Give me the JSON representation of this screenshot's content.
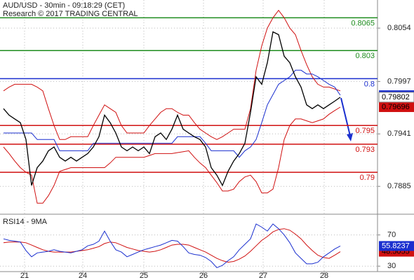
{
  "chart_data": [
    {
      "type": "line",
      "title": "AUD/USD - 30min - 09:18:29 (CET)",
      "subtitle": "Research © 2017 TRADING CENTRAL",
      "x": [
        0,
        1,
        2,
        3,
        4,
        5,
        6,
        7,
        8,
        9,
        10,
        11,
        12,
        13,
        14,
        15,
        16,
        17,
        18,
        19,
        20,
        21,
        22,
        23,
        24,
        25,
        26,
        27,
        28,
        29,
        30,
        31,
        32,
        33,
        34,
        35,
        36,
        37,
        38,
        39,
        40,
        41,
        42,
        43,
        44,
        45,
        46,
        47,
        48,
        49,
        50,
        51,
        52,
        53,
        54,
        55,
        56,
        57,
        58,
        59,
        60
      ],
      "series": [
        {
          "color": "#d01010",
          "values": [
            0.7987,
            0.7991,
            0.7994,
            0.7994,
            0.7994,
            0.7994,
            0.7991,
            0.7987,
            0.7968,
            0.795,
            0.7935,
            0.7935,
            0.7938,
            0.7938,
            0.7938,
            0.7938,
            0.795,
            0.7961,
            0.7972,
            0.7968,
            0.7964,
            0.795,
            0.7942,
            0.7942,
            0.7942,
            0.7942,
            0.795,
            0.7957,
            0.7964,
            0.7968,
            0.7968,
            0.7964,
            0.7961,
            0.7961,
            0.7953,
            0.7946,
            0.7942,
            0.7938,
            0.7935,
            0.7938,
            0.7942,
            0.7946,
            0.7946,
            0.7946,
            0.7968,
            0.8009,
            0.8035,
            0.8054,
            0.8065,
            0.8073,
            0.8065,
            0.8054,
            0.8047,
            0.803,
            0.8015,
            0.8002,
            0.7994,
            0.7991,
            0.7991,
            0.7989,
            0.7987
          ]
        },
        {
          "color": "#d01010",
          "tag": true,
          "values": [
            0.7927,
            0.792,
            0.7912,
            0.7905,
            0.79,
            0.7897,
            0.7867,
            0.7867,
            0.7875,
            0.7886,
            0.7901,
            0.7903,
            0.7905,
            0.7905,
            0.7905,
            0.7905,
            0.7905,
            0.7905,
            0.7905,
            0.791,
            0.7916,
            0.7916,
            0.7916,
            0.7916,
            0.7916,
            0.7916,
            0.7918,
            0.792,
            0.792,
            0.792,
            0.792,
            0.7921,
            0.7922,
            0.7923,
            0.7916,
            0.791,
            0.7905,
            0.7897,
            0.7889,
            0.788,
            0.788,
            0.7882,
            0.789,
            0.7895,
            0.7897,
            0.789,
            0.7878,
            0.7878,
            0.7882,
            0.7905,
            0.7935,
            0.795,
            0.7957,
            0.7957,
            0.7955,
            0.7953,
            0.7955,
            0.7957,
            0.7962,
            0.7966,
            0.79696
          ]
        },
        {
          "color": "#1a2fcf",
          "tag": true,
          "values": [
            0.7942,
            0.7942,
            0.7942,
            0.7942,
            0.7942,
            0.7942,
            0.7935,
            0.7935,
            0.7935,
            0.7935,
            0.7923,
            0.7923,
            0.7923,
            0.7923,
            0.7923,
            0.7923,
            0.7931,
            0.7931,
            0.7931,
            0.7931,
            0.7931,
            0.7931,
            0.7931,
            0.7931,
            0.7931,
            0.7931,
            0.7931,
            0.7931,
            0.7931,
            0.7931,
            0.7931,
            0.7938,
            0.7938,
            0.7938,
            0.7938,
            0.7938,
            0.7931,
            0.7923,
            0.7923,
            0.7923,
            0.7923,
            0.7923,
            0.7916,
            0.7923,
            0.7927,
            0.7935,
            0.7953,
            0.7972,
            0.7983,
            0.7994,
            0.7998,
            0.8002,
            0.8009,
            0.8009,
            0.8005,
            0.8005,
            0.8002,
            0.7998,
            0.7994,
            0.7991,
            0.79823
          ]
        },
        {
          "color": "#000000",
          "tag": true,
          "values": [
            0.7968,
            0.7961,
            0.7957,
            0.7953,
            0.7935,
            0.7886,
            0.7905,
            0.7912,
            0.7923,
            0.7927,
            0.7916,
            0.7912,
            0.7916,
            0.7912,
            0.7916,
            0.792,
            0.7927,
            0.7938,
            0.7961,
            0.7953,
            0.7942,
            0.7927,
            0.7923,
            0.7927,
            0.7923,
            0.7927,
            0.792,
            0.7938,
            0.7942,
            0.7935,
            0.7946,
            0.7961,
            0.7946,
            0.7942,
            0.7938,
            0.7935,
            0.7927,
            0.7905,
            0.7897,
            0.7886,
            0.7901,
            0.7912,
            0.792,
            0.7931,
            0.7964,
            0.8002,
            0.7994,
            0.8017,
            0.805,
            0.8047,
            0.8024,
            0.8017,
            0.8002,
            0.7991,
            0.7972,
            0.7968,
            0.7972,
            0.7968,
            0.7972,
            0.7976,
            0.79802
          ]
        }
      ],
      "levels": [
        {
          "value": 0.8065,
          "color": "#1e8c1e"
        },
        {
          "value": 0.803,
          "color": "#1e8c1e"
        },
        {
          "value": 0.8,
          "color": "#1a2fcf"
        },
        {
          "value": 0.795,
          "color": "#d01010"
        },
        {
          "value": 0.793,
          "color": "#d01010"
        },
        {
          "value": 0.79,
          "color": "#d01010"
        }
      ],
      "xlim": [
        -0.625,
        66.625
      ],
      "ylim": [
        0.7856,
        0.8084
      ],
      "yticks": [
        0.8054,
        0.7997,
        0.7941,
        0.7885
      ],
      "grid": true
    },
    {
      "type": "line",
      "title": "RSI14 - 9MA",
      "x": [
        0,
        1,
        2,
        3,
        4,
        5,
        6,
        7,
        8,
        9,
        10,
        11,
        12,
        13,
        14,
        15,
        16,
        17,
        18,
        19,
        20,
        21,
        22,
        23,
        24,
        25,
        26,
        27,
        28,
        29,
        30,
        31,
        32,
        33,
        34,
        35,
        36,
        37,
        38,
        39,
        40,
        41,
        42,
        43,
        44,
        45,
        46,
        47,
        48,
        49,
        50,
        51,
        52,
        53,
        54,
        55,
        56,
        57,
        58,
        59,
        60
      ],
      "series": [
        {
          "color": "#d01010",
          "tag": true,
          "values": [
            60,
            61,
            61,
            61,
            60,
            57,
            54,
            51,
            49,
            48,
            48,
            48,
            48,
            49,
            50,
            51,
            53,
            55,
            59,
            61,
            60,
            57,
            54,
            52,
            50,
            49,
            48,
            49,
            51,
            54,
            57,
            58,
            58,
            57,
            54,
            51,
            48,
            44,
            40,
            37,
            35,
            36,
            39,
            43,
            49,
            56,
            63,
            68,
            74,
            77,
            78,
            76,
            71,
            65,
            57,
            50,
            44,
            41,
            40,
            44,
            48.5055
          ]
        },
        {
          "color": "#1a2fcf",
          "tag": true,
          "values": [
            65,
            63,
            62,
            61,
            50,
            42,
            47,
            48,
            49,
            51,
            49,
            48,
            47,
            49,
            51,
            56,
            58,
            62,
            75,
            62,
            51,
            48,
            42,
            45,
            48,
            51,
            53,
            55,
            57,
            60,
            63,
            62,
            55,
            47,
            45,
            44,
            41,
            36,
            28,
            31,
            37,
            42,
            51,
            58,
            65,
            84,
            80,
            75,
            84,
            78,
            70,
            60,
            47,
            40,
            33,
            33,
            35,
            42,
            47,
            52,
            55.8237
          ]
        }
      ],
      "xlim": [
        -0.625,
        66.625
      ],
      "ylim": [
        23,
        93
      ],
      "yticks": [
        70,
        30
      ],
      "xticks": [
        {
          "value": 3.75,
          "label": "21"
        },
        {
          "value": 14.125,
          "label": "24"
        },
        {
          "value": 25,
          "label": "25"
        },
        {
          "value": 35.625,
          "label": "26"
        },
        {
          "value": 46.25,
          "label": "27"
        },
        {
          "value": 57.125,
          "label": "28"
        }
      ],
      "grid": true
    }
  ]
}
